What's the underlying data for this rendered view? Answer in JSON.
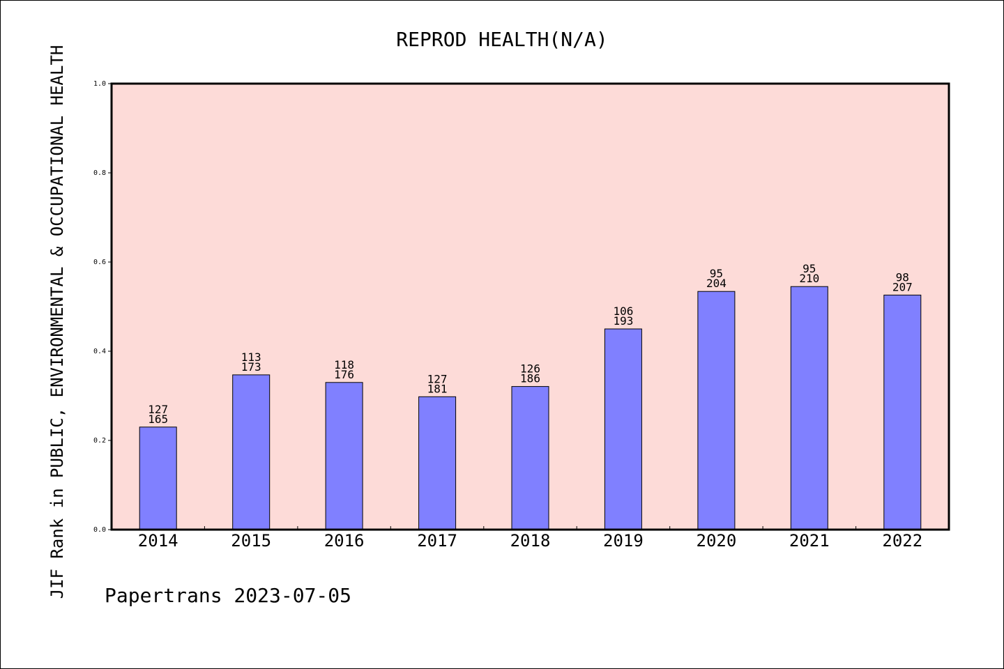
{
  "chart_data": {
    "type": "bar",
    "title": "REPROD HEALTH(N/A)",
    "ylabel": "JIF Rank in PUBLIC, ENVIRONMENTAL & OCCUPATIONAL HEALTH",
    "xlabel": "",
    "footer": "Papertrans 2023-07-05",
    "categories": [
      "2014",
      "2015",
      "2016",
      "2017",
      "2018",
      "2019",
      "2020",
      "2021",
      "2022"
    ],
    "values": [
      0.23,
      0.347,
      0.33,
      0.298,
      0.321,
      0.45,
      0.534,
      0.545,
      0.526
    ],
    "rank": [
      "127",
      "113",
      "118",
      "127",
      "126",
      "106",
      "95",
      "95",
      "98"
    ],
    "total": [
      "165",
      "173",
      "176",
      "181",
      "186",
      "193",
      "204",
      "210",
      "207"
    ],
    "ylim": [
      0,
      1.0
    ],
    "yticks": [
      "0.0",
      "0.2",
      "0.4",
      "0.6",
      "0.8",
      "1.0"
    ],
    "grid": false,
    "colors": {
      "bar": "#8080ff",
      "plot_bg": "#fddbd8",
      "axis": "#000000"
    }
  }
}
